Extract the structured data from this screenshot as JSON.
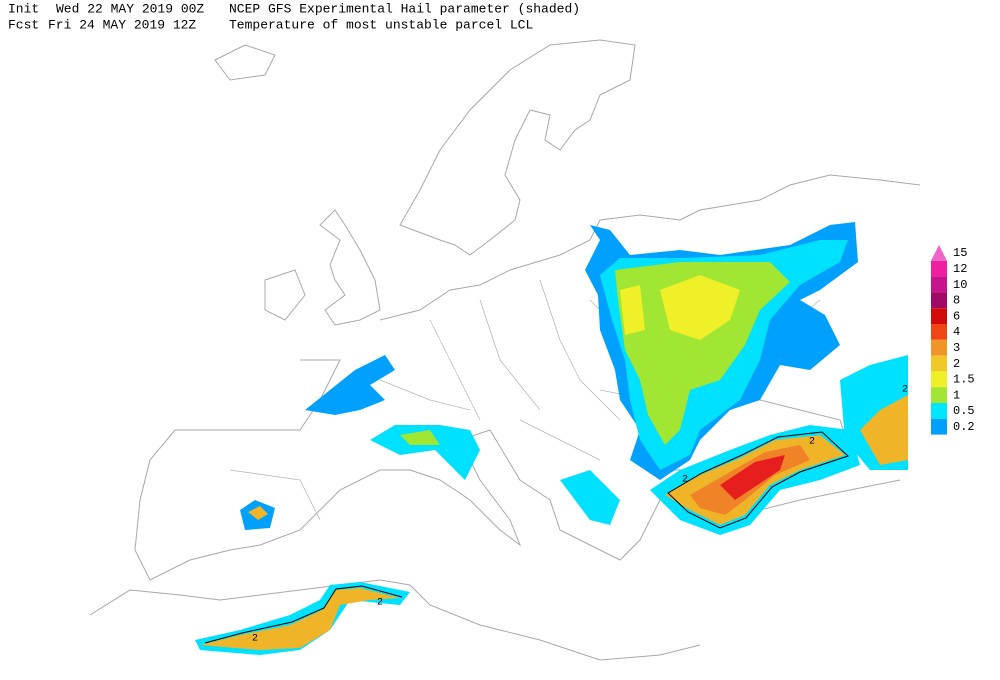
{
  "header": {
    "line1": {
      "label": "Init",
      "date": "Wed 22 MAY 2019 00Z",
      "field": "NCEP GFS Experimental Hail parameter (shaded)"
    },
    "line2": {
      "label": "Fcst",
      "date": "Fri 24 MAY 2019 12Z",
      "field": "Temperature of most unstable parcel LCL"
    }
  },
  "legend": {
    "levels": [
      15,
      12,
      10,
      8,
      6,
      4,
      3,
      2,
      1.5,
      1,
      0.5,
      0.2
    ],
    "colors": [
      "#f064c8",
      "#f01ea0",
      "#c8148c",
      "#a00a64",
      "#d20a0a",
      "#f04614",
      "#f09628",
      "#f0c828",
      "#f0f028",
      "#a0e632",
      "#00e6ff",
      "#00a0ff"
    ]
  },
  "contour_labels": [
    "2",
    "2",
    "2",
    "2",
    "2"
  ]
}
